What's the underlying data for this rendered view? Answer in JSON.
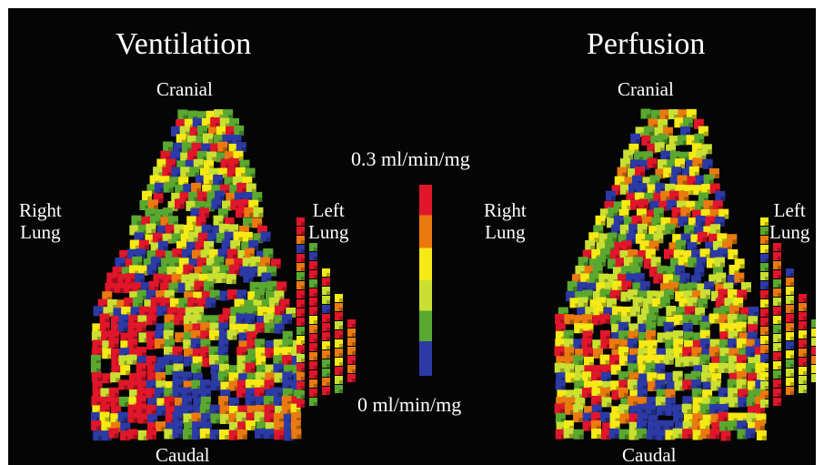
{
  "panels": [
    {
      "title": "Ventilation",
      "top_label": "Cranial",
      "bottom_label": "Caudal",
      "left_label_line1": "Right",
      "left_label_line2": "Lung",
      "right_label_line1": "Left",
      "right_label_line2": "Lung"
    },
    {
      "title": "Perfusion",
      "top_label": "Cranial",
      "bottom_label": "Caudal",
      "left_label_line1": "Right",
      "left_label_line2": "Lung",
      "right_label_line1": "Left",
      "right_label_line2": "Lung"
    }
  ],
  "scale": {
    "max_label": "0.3 ml/min/mg",
    "min_label": "0 ml/min/mg",
    "colors": [
      "#e0162a",
      "#ea7a10",
      "#f6ea16",
      "#c9e032",
      "#5aa830",
      "#2c3aa6"
    ]
  },
  "colors": {
    "background": "#050505",
    "label_text": "#ffffff"
  }
}
